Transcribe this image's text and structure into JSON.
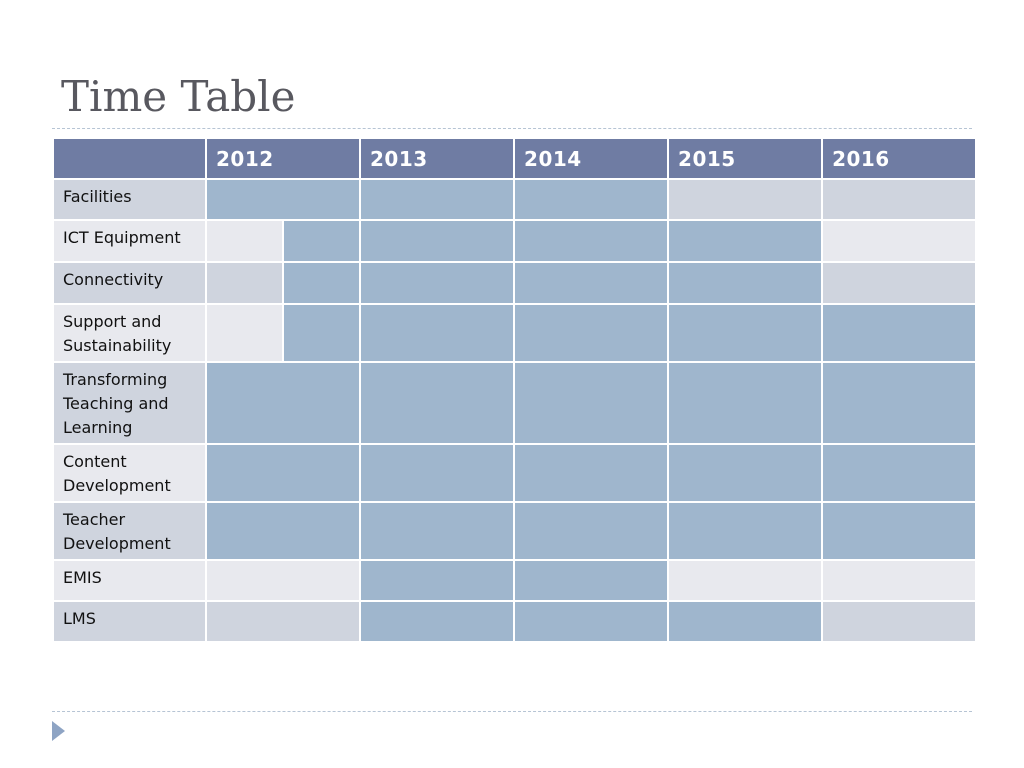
{
  "slide": {
    "title": "Time Table"
  },
  "table": {
    "years": [
      "2012",
      "2013",
      "2014",
      "2015",
      "2016"
    ],
    "rows": [
      {
        "label": "Facilities",
        "cells": [
          {
            "span": 2,
            "filled": true
          },
          {
            "span": 2,
            "filled": true
          },
          {
            "span": 2,
            "filled": true
          },
          {
            "span": 2,
            "filled": false
          },
          {
            "span": 2,
            "filled": false
          }
        ]
      },
      {
        "label": "ICT Equipment",
        "cells": [
          {
            "span": 1,
            "filled": false
          },
          {
            "span": 1,
            "filled": true
          },
          {
            "span": 2,
            "filled": true
          },
          {
            "span": 2,
            "filled": true
          },
          {
            "span": 2,
            "filled": true
          },
          {
            "span": 2,
            "filled": false
          }
        ]
      },
      {
        "label": "Connectivity",
        "cells": [
          {
            "span": 1,
            "filled": false
          },
          {
            "span": 1,
            "filled": true
          },
          {
            "span": 2,
            "filled": true
          },
          {
            "span": 2,
            "filled": true
          },
          {
            "span": 2,
            "filled": true
          },
          {
            "span": 2,
            "filled": false
          }
        ]
      },
      {
        "label": "Support and Sustainability",
        "cells": [
          {
            "span": 1,
            "filled": false
          },
          {
            "span": 1,
            "filled": true
          },
          {
            "span": 2,
            "filled": true
          },
          {
            "span": 2,
            "filled": true
          },
          {
            "span": 2,
            "filled": true
          },
          {
            "span": 2,
            "filled": true
          }
        ]
      },
      {
        "label": "Transforming Teaching and Learning",
        "cells": [
          {
            "span": 2,
            "filled": true
          },
          {
            "span": 2,
            "filled": true
          },
          {
            "span": 2,
            "filled": true
          },
          {
            "span": 2,
            "filled": true
          },
          {
            "span": 2,
            "filled": true
          }
        ]
      },
      {
        "label": "Content Development",
        "cells": [
          {
            "span": 2,
            "filled": true
          },
          {
            "span": 2,
            "filled": true
          },
          {
            "span": 2,
            "filled": true
          },
          {
            "span": 2,
            "filled": true
          },
          {
            "span": 2,
            "filled": true
          }
        ]
      },
      {
        "label": "Teacher Development",
        "cells": [
          {
            "span": 2,
            "filled": true
          },
          {
            "span": 2,
            "filled": true
          },
          {
            "span": 2,
            "filled": true
          },
          {
            "span": 2,
            "filled": true
          },
          {
            "span": 2,
            "filled": true
          }
        ]
      },
      {
        "label": "EMIS",
        "cells": [
          {
            "span": 2,
            "filled": false
          },
          {
            "span": 2,
            "filled": true
          },
          {
            "span": 2,
            "filled": true
          },
          {
            "span": 2,
            "filled": false
          },
          {
            "span": 2,
            "filled": false
          }
        ]
      },
      {
        "label": "LMS",
        "cells": [
          {
            "span": 2,
            "filled": false
          },
          {
            "span": 2,
            "filled": true
          },
          {
            "span": 2,
            "filled": true
          },
          {
            "span": 2,
            "filled": true
          },
          {
            "span": 2,
            "filled": false
          }
        ]
      }
    ]
  },
  "colors": {
    "header": "#6f7ca3",
    "filled": "#9fb6cd",
    "row_band_dark": "#cfd4de",
    "row_band_light": "#e8e9ee",
    "title_text": "#58585f",
    "bullet": "#8ea4c4"
  },
  "icons": {
    "footer_bullet": "play-triangle-icon"
  }
}
